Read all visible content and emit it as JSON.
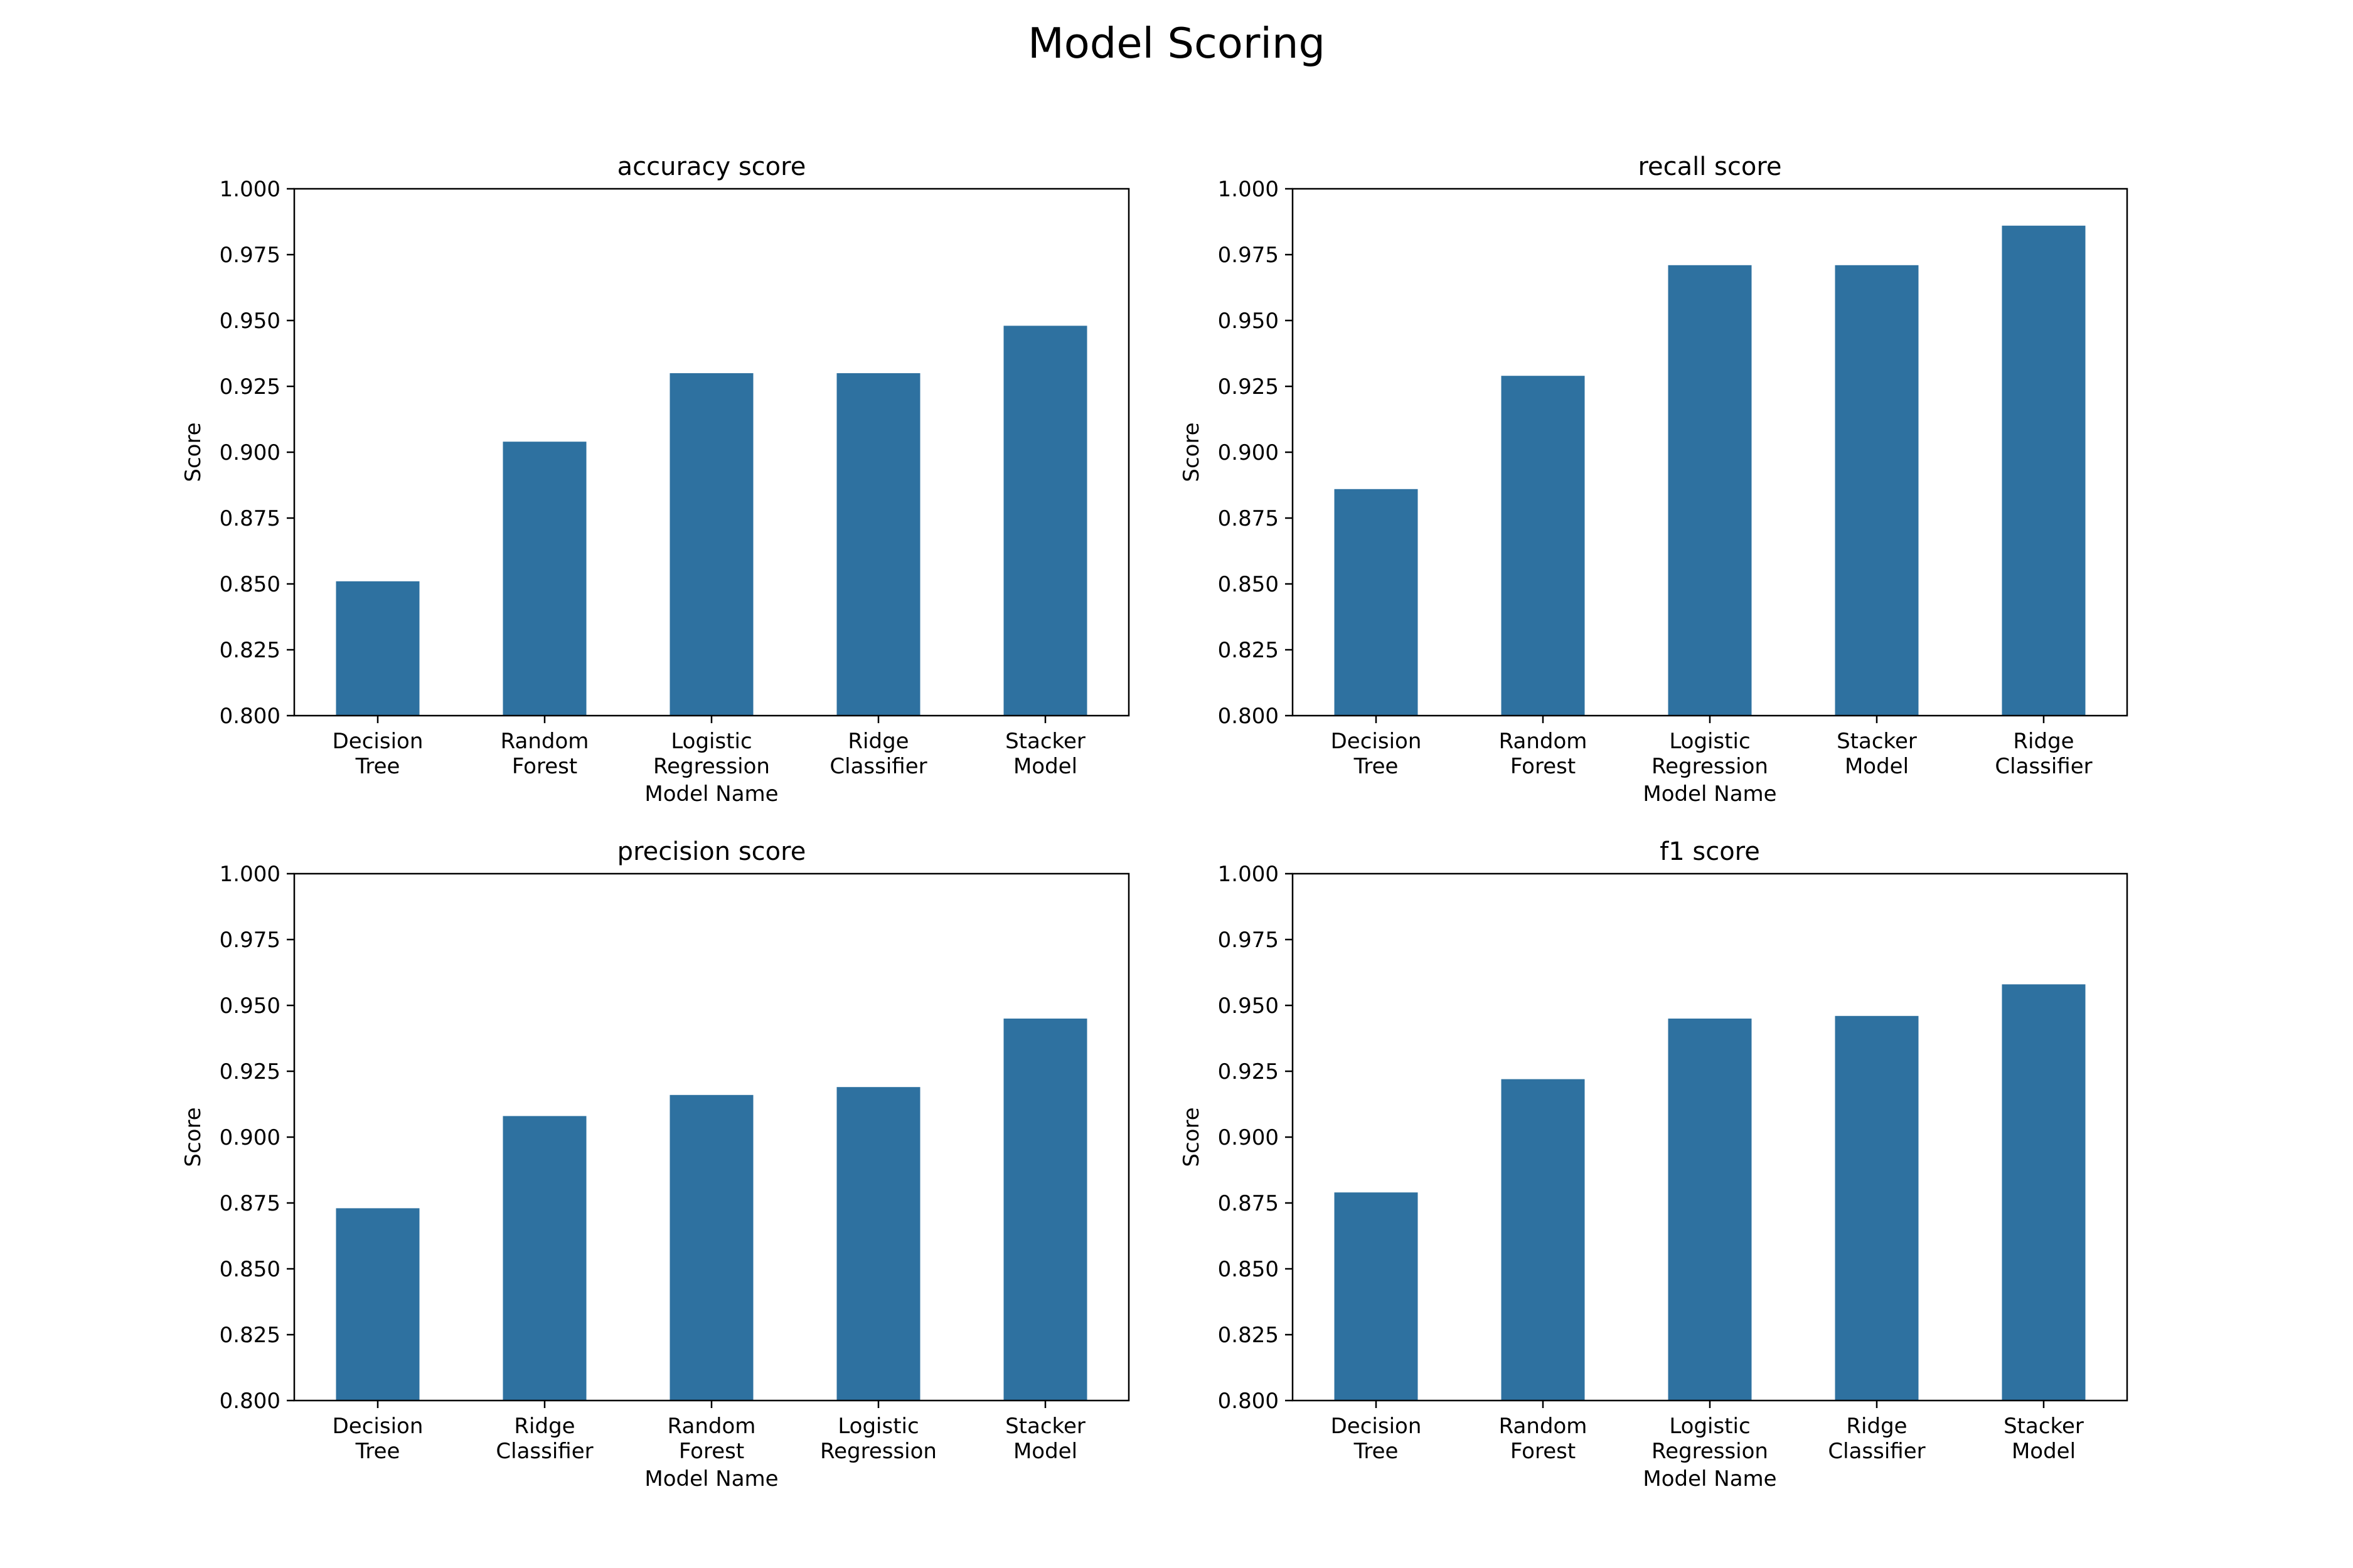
{
  "title": "Model Scoring",
  "colors": {
    "bar": "#2e71a0",
    "axis": "#000000"
  },
  "chart_data": [
    {
      "type": "bar",
      "title": "accuracy score",
      "xlabel": "Model Name",
      "ylabel": "Score",
      "ylim": [
        0.8,
        1.0
      ],
      "yticks": [
        "0.800",
        "0.825",
        "0.850",
        "0.875",
        "0.900",
        "0.925",
        "0.950",
        "0.975",
        "1.000"
      ],
      "categories": [
        "Decision\nTree",
        "Random\nForest",
        "Logistic\nRegression",
        "Ridge\nClassifier",
        "Stacker\nModel"
      ],
      "values": [
        0.851,
        0.904,
        0.93,
        0.93,
        0.948
      ],
      "grid": false,
      "legend": "none"
    },
    {
      "type": "bar",
      "title": "recall score",
      "xlabel": "Model Name",
      "ylabel": "Score",
      "ylim": [
        0.8,
        1.0
      ],
      "yticks": [
        "0.800",
        "0.825",
        "0.850",
        "0.875",
        "0.900",
        "0.925",
        "0.950",
        "0.975",
        "1.000"
      ],
      "categories": [
        "Decision\nTree",
        "Random\nForest",
        "Logistic\nRegression",
        "Stacker\nModel",
        "Ridge\nClassifier"
      ],
      "values": [
        0.886,
        0.929,
        0.971,
        0.971,
        0.986
      ],
      "grid": false,
      "legend": "none"
    },
    {
      "type": "bar",
      "title": "precision score",
      "xlabel": "Model Name",
      "ylabel": "Score",
      "ylim": [
        0.8,
        1.0
      ],
      "yticks": [
        "0.800",
        "0.825",
        "0.850",
        "0.875",
        "0.900",
        "0.925",
        "0.950",
        "0.975",
        "1.000"
      ],
      "categories": [
        "Decision\nTree",
        "Ridge\nClassifier",
        "Random\nForest",
        "Logistic\nRegression",
        "Stacker\nModel"
      ],
      "values": [
        0.873,
        0.908,
        0.916,
        0.919,
        0.945
      ],
      "grid": false,
      "legend": "none"
    },
    {
      "type": "bar",
      "title": "f1 score",
      "xlabel": "Model Name",
      "ylabel": "Score",
      "ylim": [
        0.8,
        1.0
      ],
      "yticks": [
        "0.800",
        "0.825",
        "0.850",
        "0.875",
        "0.900",
        "0.925",
        "0.950",
        "0.975",
        "1.000"
      ],
      "categories": [
        "Decision\nTree",
        "Random\nForest",
        "Logistic\nRegression",
        "Ridge\nClassifier",
        "Stacker\nModel"
      ],
      "values": [
        0.879,
        0.922,
        0.945,
        0.946,
        0.958
      ],
      "grid": false,
      "legend": "none"
    }
  ]
}
